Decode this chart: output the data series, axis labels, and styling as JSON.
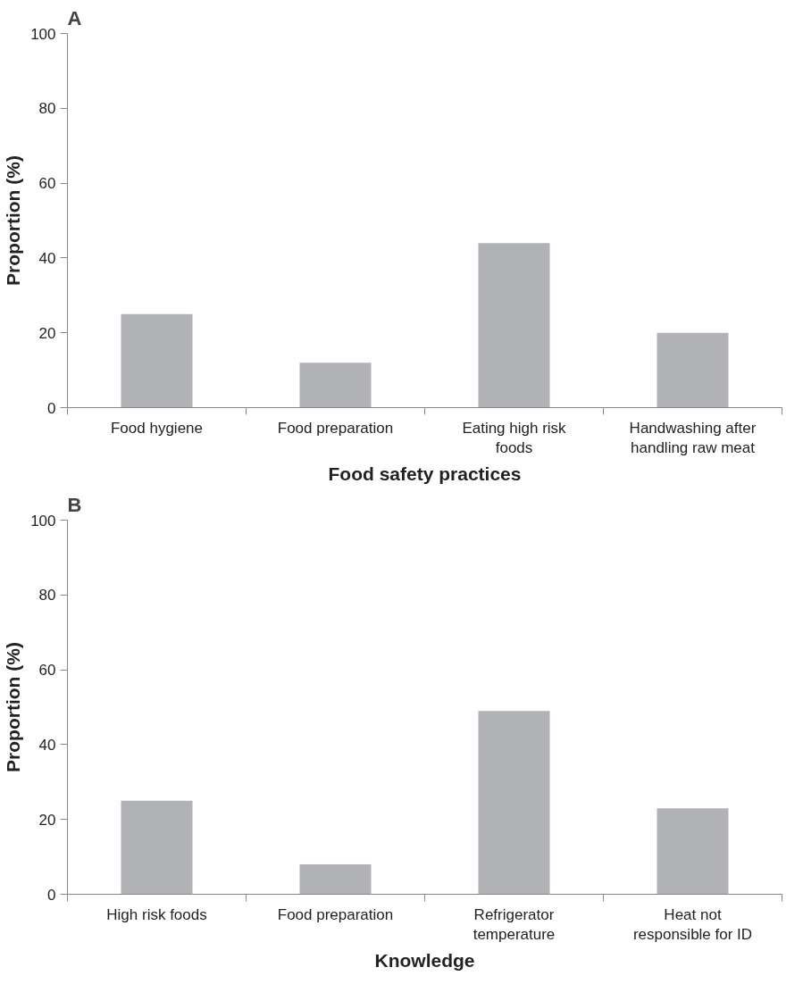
{
  "chart_data": [
    {
      "type": "bar",
      "title": "A",
      "xlabel": "Food safety practices",
      "ylabel": "Proportion (%)",
      "categories": [
        "Food hygiene",
        "Food preparation",
        "Eating high risk\nfoods",
        "Handwashing after\nhandling raw meat"
      ],
      "values": [
        25,
        12,
        44,
        20
      ],
      "color": "#b1b2b6",
      "ylim": [
        0,
        100
      ],
      "yticks": [
        0,
        20,
        40,
        60,
        80,
        100
      ],
      "grid": false
    },
    {
      "type": "bar",
      "title": "B",
      "xlabel": "Knowledge",
      "ylabel": "Proportion (%)",
      "categories": [
        "High risk foods",
        "Food preparation",
        "Refrigerator\ntemperature",
        "Heat not\nresponsible for ID"
      ],
      "values": [
        25,
        8,
        49,
        23
      ],
      "color": "#b1b2b6",
      "ylim": [
        0,
        100
      ],
      "yticks": [
        0,
        20,
        40,
        60,
        80,
        100
      ],
      "grid": false
    }
  ]
}
